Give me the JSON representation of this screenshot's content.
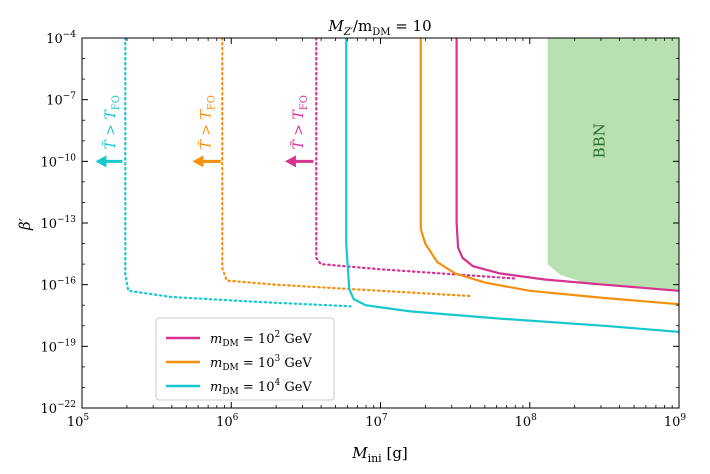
{
  "chart_data": {
    "type": "line",
    "title": "M_{Z'}/m_DM = 10",
    "title_main": "M",
    "title_sub": "Z′",
    "title_rest": "/m",
    "title_sub2": "DM",
    "title_tail": " = 10",
    "xlabel_main": "M",
    "xlabel_sub": "ini",
    "xlabel_unit": " [g]",
    "ylabel": "β′",
    "xscale": "log",
    "yscale": "log",
    "xlim_exp": [
      5,
      9
    ],
    "ylim_exp": [
      -22,
      -4
    ],
    "x_ticks": [
      {
        "exp": 5,
        "label": "10",
        "sup": "5"
      },
      {
        "exp": 6,
        "label": "10",
        "sup": "6"
      },
      {
        "exp": 7,
        "label": "10",
        "sup": "7"
      },
      {
        "exp": 8,
        "label": "10",
        "sup": "8"
      },
      {
        "exp": 9,
        "label": "10",
        "sup": "9"
      }
    ],
    "y_ticks": [
      {
        "exp": -4,
        "label": "10",
        "sup": "−4"
      },
      {
        "exp": -7,
        "label": "10",
        "sup": "−7"
      },
      {
        "exp": -10,
        "label": "10",
        "sup": "−10"
      },
      {
        "exp": -13,
        "label": "10",
        "sup": "−13"
      },
      {
        "exp": -16,
        "label": "10",
        "sup": "−16"
      },
      {
        "exp": -19,
        "label": "10",
        "sup": "−19"
      },
      {
        "exp": -22,
        "label": "10",
        "sup": "−22"
      }
    ],
    "bbn_region": {
      "label": "BBN",
      "color": "#b8e0b0",
      "boundary_log": [
        [
          8.12,
          -4
        ],
        [
          8.12,
          -15.0
        ],
        [
          8.2,
          -15.5
        ],
        [
          8.4,
          -16.0
        ],
        [
          8.7,
          -16.15
        ],
        [
          9.0,
          -16.3
        ],
        [
          9.0,
          -4
        ]
      ]
    },
    "series": [
      {
        "name": "m_DM = 10^2 GeV",
        "legend_main": "m",
        "legend_sub": "DM",
        "legend_mid": " = 10",
        "legend_sup": "2",
        "legend_unit": " GeV",
        "color": "#d63391",
        "solid_log": [
          [
            7.51,
            -4
          ],
          [
            7.51,
            -13.0
          ],
          [
            7.52,
            -14.2
          ],
          [
            7.55,
            -14.7
          ],
          [
            7.62,
            -15.1
          ],
          [
            7.8,
            -15.45
          ],
          [
            8.1,
            -15.75
          ],
          [
            8.5,
            -16.0
          ],
          [
            9.0,
            -16.3
          ]
        ],
        "dotted_log": [
          [
            6.57,
            -4
          ],
          [
            6.57,
            -14.7
          ],
          [
            6.6,
            -15.0
          ],
          [
            7.0,
            -15.25
          ],
          [
            7.5,
            -15.5
          ],
          [
            7.9,
            -15.7
          ]
        ],
        "arrow_log_y": -10,
        "arrow_log_x_from": 6.55,
        "arrow_log_x_to": 6.36,
        "anno_log_x": 6.48
      },
      {
        "name": "m_DM = 10^3 GeV",
        "legend_main": "m",
        "legend_sub": "DM",
        "legend_mid": " = 10",
        "legend_sup": "3",
        "legend_unit": " GeV",
        "color": "#f5900f",
        "solid_log": [
          [
            7.27,
            -4
          ],
          [
            7.27,
            -13.3
          ],
          [
            7.3,
            -14.0
          ],
          [
            7.38,
            -14.9
          ],
          [
            7.5,
            -15.45
          ],
          [
            7.7,
            -15.9
          ],
          [
            8.0,
            -16.3
          ],
          [
            8.5,
            -16.65
          ],
          [
            9.0,
            -16.95
          ]
        ],
        "dotted_log": [
          [
            5.94,
            -4
          ],
          [
            5.94,
            -15.2
          ],
          [
            5.97,
            -15.8
          ],
          [
            6.3,
            -16.0
          ],
          [
            7.0,
            -16.3
          ],
          [
            7.6,
            -16.55
          ]
        ],
        "arrow_log_y": -10,
        "arrow_log_x_from": 5.93,
        "arrow_log_x_to": 5.74,
        "anno_log_x": 5.86
      },
      {
        "name": "m_DM = 10^4 GeV",
        "legend_main": "m",
        "legend_sub": "DM",
        "legend_mid": " = 10",
        "legend_sup": "4",
        "legend_unit": " GeV",
        "color": "#19c8cf",
        "solid_log": [
          [
            6.77,
            -4
          ],
          [
            6.77,
            -14.0
          ],
          [
            6.79,
            -16.2
          ],
          [
            6.82,
            -16.7
          ],
          [
            6.9,
            -17.0
          ],
          [
            7.2,
            -17.3
          ],
          [
            7.8,
            -17.65
          ],
          [
            8.5,
            -18.0
          ],
          [
            9.0,
            -18.3
          ]
        ],
        "dotted_log": [
          [
            5.29,
            -4
          ],
          [
            5.29,
            -15.5
          ],
          [
            5.31,
            -16.3
          ],
          [
            5.6,
            -16.6
          ],
          [
            6.2,
            -16.85
          ],
          [
            6.8,
            -17.05
          ]
        ],
        "arrow_log_y": -10,
        "arrow_log_x_from": 5.27,
        "arrow_log_x_to": 5.09,
        "anno_log_x": 5.22
      }
    ],
    "annotation_text_main": "T̃ > T",
    "annotation_text_sub": "FO"
  }
}
